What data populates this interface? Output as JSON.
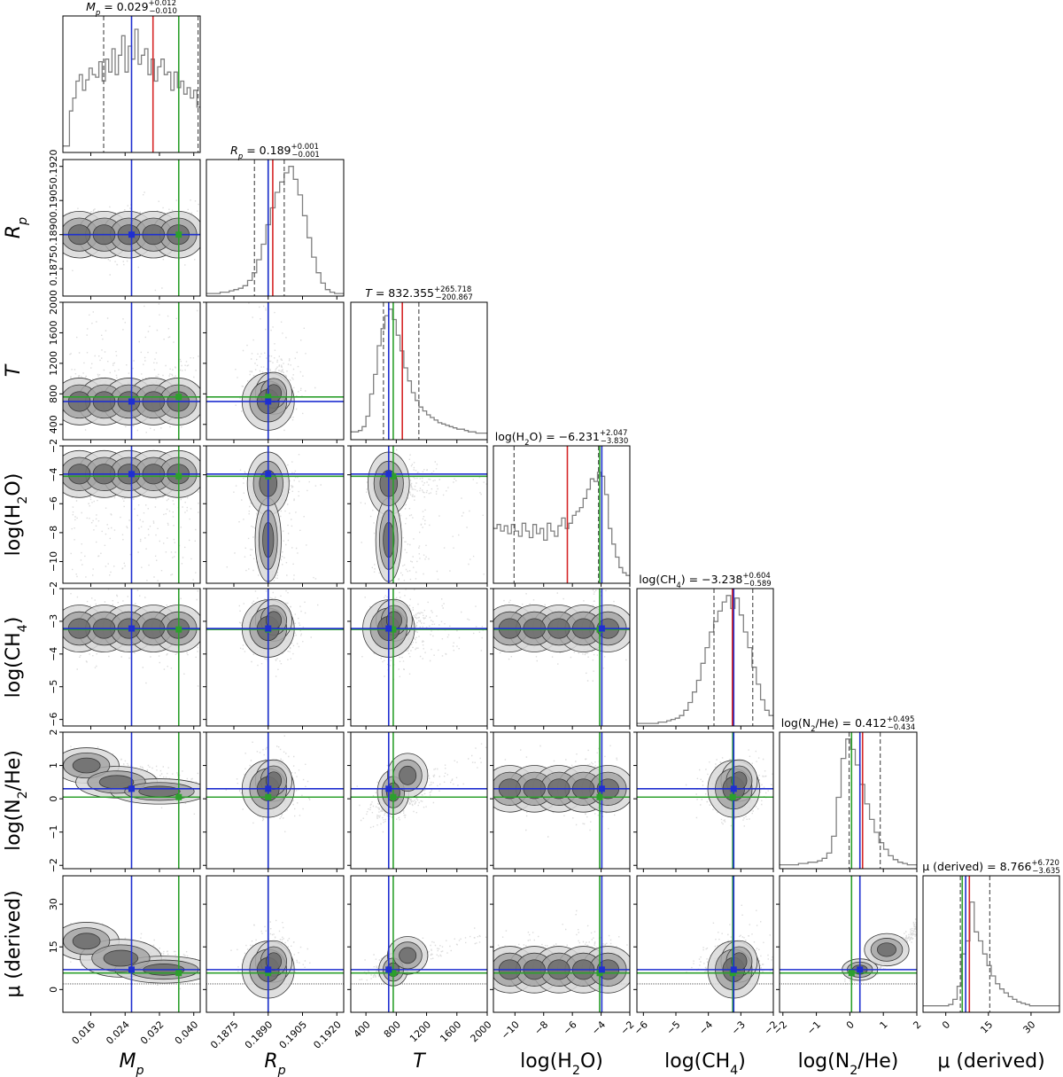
{
  "chart_data": {
    "type": "corner",
    "parameters": [
      {
        "key": "Mp",
        "label": "M",
        "label_sub": "p",
        "label_italic": true,
        "title_prefix": "M",
        "title_sub": "p",
        "title_value": " = 0.029",
        "title_plus": "+0.012",
        "title_minus": "−0.010",
        "range": [
          0.0095,
          0.0415
        ],
        "ticks": [
          0.016,
          0.024,
          0.032,
          0.04
        ],
        "tick_labels": [
          "0.016",
          "0.024",
          "0.032",
          "0.040"
        ],
        "median": 0.029,
        "q16": 0.019,
        "q84": 0.041,
        "truth_green": 0.0365,
        "truth_blue": 0.0255,
        "best_red": 0.0305,
        "hist": [
          0.05,
          0.05,
          0.32,
          0.42,
          0.55,
          0.6,
          0.48,
          0.56,
          0.65,
          0.6,
          0.58,
          0.7,
          0.55,
          0.72,
          0.62,
          0.8,
          0.6,
          0.75,
          0.9,
          0.62,
          0.82,
          0.72,
          0.95,
          0.68,
          0.75,
          0.8,
          0.6,
          0.72,
          0.55,
          0.66,
          0.72,
          0.6,
          0.62,
          0.48,
          0.62,
          0.5,
          0.55,
          0.45,
          0.5,
          0.42,
          0.48,
          0.35
        ]
      },
      {
        "key": "Rp",
        "label": "R",
        "label_sub": "p",
        "label_italic": true,
        "title_prefix": "R",
        "title_sub": "p",
        "title_value": " = 0.189",
        "title_plus": "+0.001",
        "title_minus": "−0.001",
        "range": [
          0.1863,
          0.1923
        ],
        "ticks": [
          0.1875,
          0.189,
          0.1905,
          0.192
        ],
        "tick_labels": [
          "0.1875",
          "0.1890",
          "0.1905",
          "0.1920"
        ],
        "median": 0.1891,
        "q16": 0.1884,
        "q84": 0.1897,
        "truth_green": 0.189,
        "truth_blue": 0.189,
        "best_red": 0.1892,
        "hist": [
          0.02,
          0.02,
          0.02,
          0.03,
          0.03,
          0.04,
          0.05,
          0.06,
          0.08,
          0.12,
          0.18,
          0.28,
          0.4,
          0.55,
          0.68,
          0.8,
          0.88,
          0.95,
          1.0,
          0.9,
          0.78,
          0.62,
          0.45,
          0.3,
          0.18,
          0.1,
          0.05,
          0.03,
          0.02,
          0.02
        ]
      },
      {
        "key": "T",
        "label": "T",
        "label_sub": "",
        "label_italic": true,
        "title_prefix": "T",
        "title_sub": "",
        "title_value": " = 832.355",
        "title_plus": "+265.718",
        "title_minus": "−200.867",
        "range": [
          200,
          2000
        ],
        "ticks": [
          400,
          800,
          1200,
          1600,
          2000
        ],
        "tick_labels": [
          "400",
          "800",
          "1200",
          "1600",
          "2000"
        ],
        "median": 832,
        "q16": 631,
        "q84": 1098,
        "truth_green": 760,
        "truth_blue": 700,
        "best_red": 880,
        "hist": [
          0.06,
          0.06,
          0.07,
          0.1,
          0.18,
          0.35,
          0.5,
          0.72,
          0.85,
          0.95,
          1.0,
          0.92,
          0.8,
          0.68,
          0.55,
          0.45,
          0.36,
          0.3,
          0.25,
          0.22,
          0.19,
          0.17,
          0.15,
          0.13,
          0.12,
          0.11,
          0.1,
          0.09,
          0.08,
          0.08,
          0.07,
          0.06,
          0.06,
          0.05,
          0.05,
          0.05
        ]
      },
      {
        "key": "H2O",
        "label": "log(H",
        "label_sub": "2",
        "label_post": "O)",
        "label_italic": false,
        "title_prefix": "log(H",
        "title_sub": "2",
        "title_post": "O)",
        "title_value": " = −6.231",
        "title_plus": "+2.047",
        "title_minus": "−3.830",
        "range": [
          -11.5,
          -2
        ],
        "ticks": [
          -10,
          -8,
          -6,
          -4,
          -2
        ],
        "tick_labels": [
          "−10",
          "−8",
          "−6",
          "−4",
          "−2"
        ],
        "median": -6.231,
        "q16": -10.06,
        "q84": -4.18,
        "truth_green": -4.1,
        "truth_blue": -3.95,
        "best_red": -6.35,
        "hist": [
          0.42,
          0.45,
          0.4,
          0.44,
          0.38,
          0.45,
          0.4,
          0.36,
          0.46,
          0.4,
          0.35,
          0.45,
          0.38,
          0.42,
          0.33,
          0.46,
          0.4,
          0.36,
          0.44,
          0.5,
          0.42,
          0.46,
          0.52,
          0.55,
          0.58,
          0.65,
          0.72,
          0.8,
          0.78,
          0.85,
          0.82,
          0.68,
          0.42,
          0.3,
          0.2,
          0.12,
          0.08,
          0.06
        ]
      },
      {
        "key": "CH4",
        "label": "log(CH",
        "label_sub": "4",
        "label_post": ")",
        "label_italic": false,
        "title_prefix": "log(CH",
        "title_sub": "4",
        "title_post": ")",
        "title_value": " = −3.238",
        "title_plus": "+0.604",
        "title_minus": "−0.589",
        "range": [
          -6.2,
          -2
        ],
        "ticks": [
          -6,
          -5,
          -4,
          -3,
          -2
        ],
        "tick_labels": [
          "−6",
          "−5",
          "−4",
          "−3",
          "−2"
        ],
        "median": -3.238,
        "q16": -3.827,
        "q84": -2.634,
        "truth_green": -3.25,
        "truth_blue": -3.22,
        "best_red": -3.26,
        "hist": [
          0.02,
          0.02,
          0.02,
          0.02,
          0.02,
          0.03,
          0.03,
          0.04,
          0.05,
          0.06,
          0.08,
          0.12,
          0.18,
          0.26,
          0.35,
          0.48,
          0.6,
          0.72,
          0.8,
          0.88,
          0.95,
          1.0,
          0.9,
          0.98,
          0.85,
          0.72,
          0.6,
          0.45,
          0.32,
          0.2,
          0.12,
          0.08
        ]
      },
      {
        "key": "N2He",
        "label": "log(N",
        "label_sub": "2",
        "label_post": "/He)",
        "label_italic": false,
        "title_prefix": "log(N",
        "title_sub": "2",
        "title_post": "/He)",
        "title_value": " = 0.412",
        "title_plus": "+0.495",
        "title_minus": "−0.434",
        "range": [
          -2.1,
          2
        ],
        "ticks": [
          -2,
          -1,
          0,
          1,
          2
        ],
        "tick_labels": [
          "−2",
          "−1",
          "0",
          "1",
          "2"
        ],
        "median": 0.412,
        "q16": -0.022,
        "q84": 0.907,
        "truth_green": 0.05,
        "truth_blue": 0.3,
        "best_red": 0.38,
        "hist": [
          0.03,
          0.03,
          0.03,
          0.03,
          0.04,
          0.04,
          0.05,
          0.05,
          0.06,
          0.08,
          0.12,
          0.25,
          0.55,
          0.85,
          1.0,
          0.92,
          0.8,
          0.65,
          0.5,
          0.38,
          0.28,
          0.2,
          0.15,
          0.1,
          0.07,
          0.05,
          0.04,
          0.03,
          0.03
        ]
      },
      {
        "key": "mu",
        "label": "μ (derived)",
        "label_sub": "",
        "label_italic": false,
        "title_prefix": "μ (derived)",
        "title_sub": "",
        "title_value": " = 8.766",
        "title_plus": "+6.720",
        "title_minus": "−3.635",
        "range": [
          -8,
          40
        ],
        "ticks": [
          0,
          15,
          30
        ],
        "tick_labels": [
          "0",
          "15",
          "30"
        ],
        "median": 8.766,
        "q16": 5.13,
        "q84": 15.49,
        "truth_green": 5.8,
        "truth_blue": 7.0,
        "best_red": 8.3,
        "hist": [
          0.05,
          0.05,
          0.05,
          0.05,
          0.05,
          0.05,
          0.06,
          0.1,
          0.2,
          0.45,
          0.55,
          0.85,
          0.62,
          0.55,
          0.45,
          0.36,
          0.28,
          0.22,
          0.18,
          0.15,
          0.12,
          0.1,
          0.08,
          0.07,
          0.06,
          0.05,
          0.05,
          0.05,
          0.05,
          0.05,
          0.05,
          0.05
        ]
      }
    ],
    "legend": "none",
    "colors": {
      "truth_green": "#2ca02c",
      "truth_blue": "#1f2fd0",
      "best_red": "#d62728",
      "hist_line": "#808080",
      "contour": "#6e6e6e"
    }
  }
}
